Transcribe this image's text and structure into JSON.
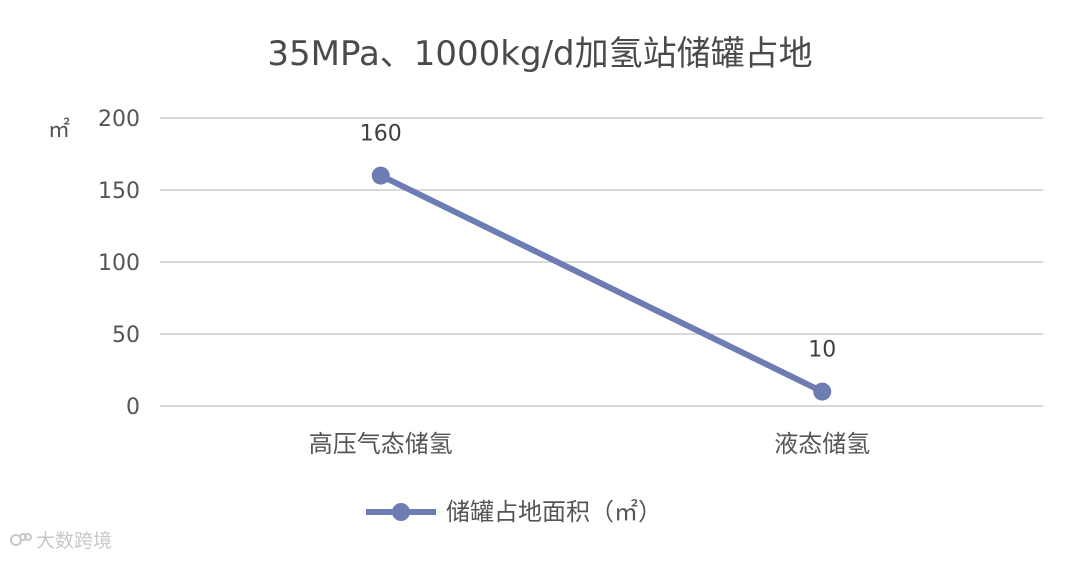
{
  "chart_data": {
    "type": "line",
    "title": "35MPa、1000kg/d加氢站储罐占地",
    "ylabel": "㎡",
    "categories": [
      "高压气态储氢",
      "液态储氢"
    ],
    "series": [
      {
        "name": "储罐占地面积（㎡）",
        "values": [
          160,
          10
        ],
        "color": "#6e7cb4"
      }
    ],
    "data_labels": [
      "160",
      "10"
    ],
    "ylim": [
      0,
      200
    ],
    "yticks": [
      0,
      50,
      100,
      150,
      200
    ],
    "grid": true,
    "legend": "bottom"
  },
  "watermark": {
    "text": "大数跨境",
    "icon": "watermark-logo-icon"
  }
}
